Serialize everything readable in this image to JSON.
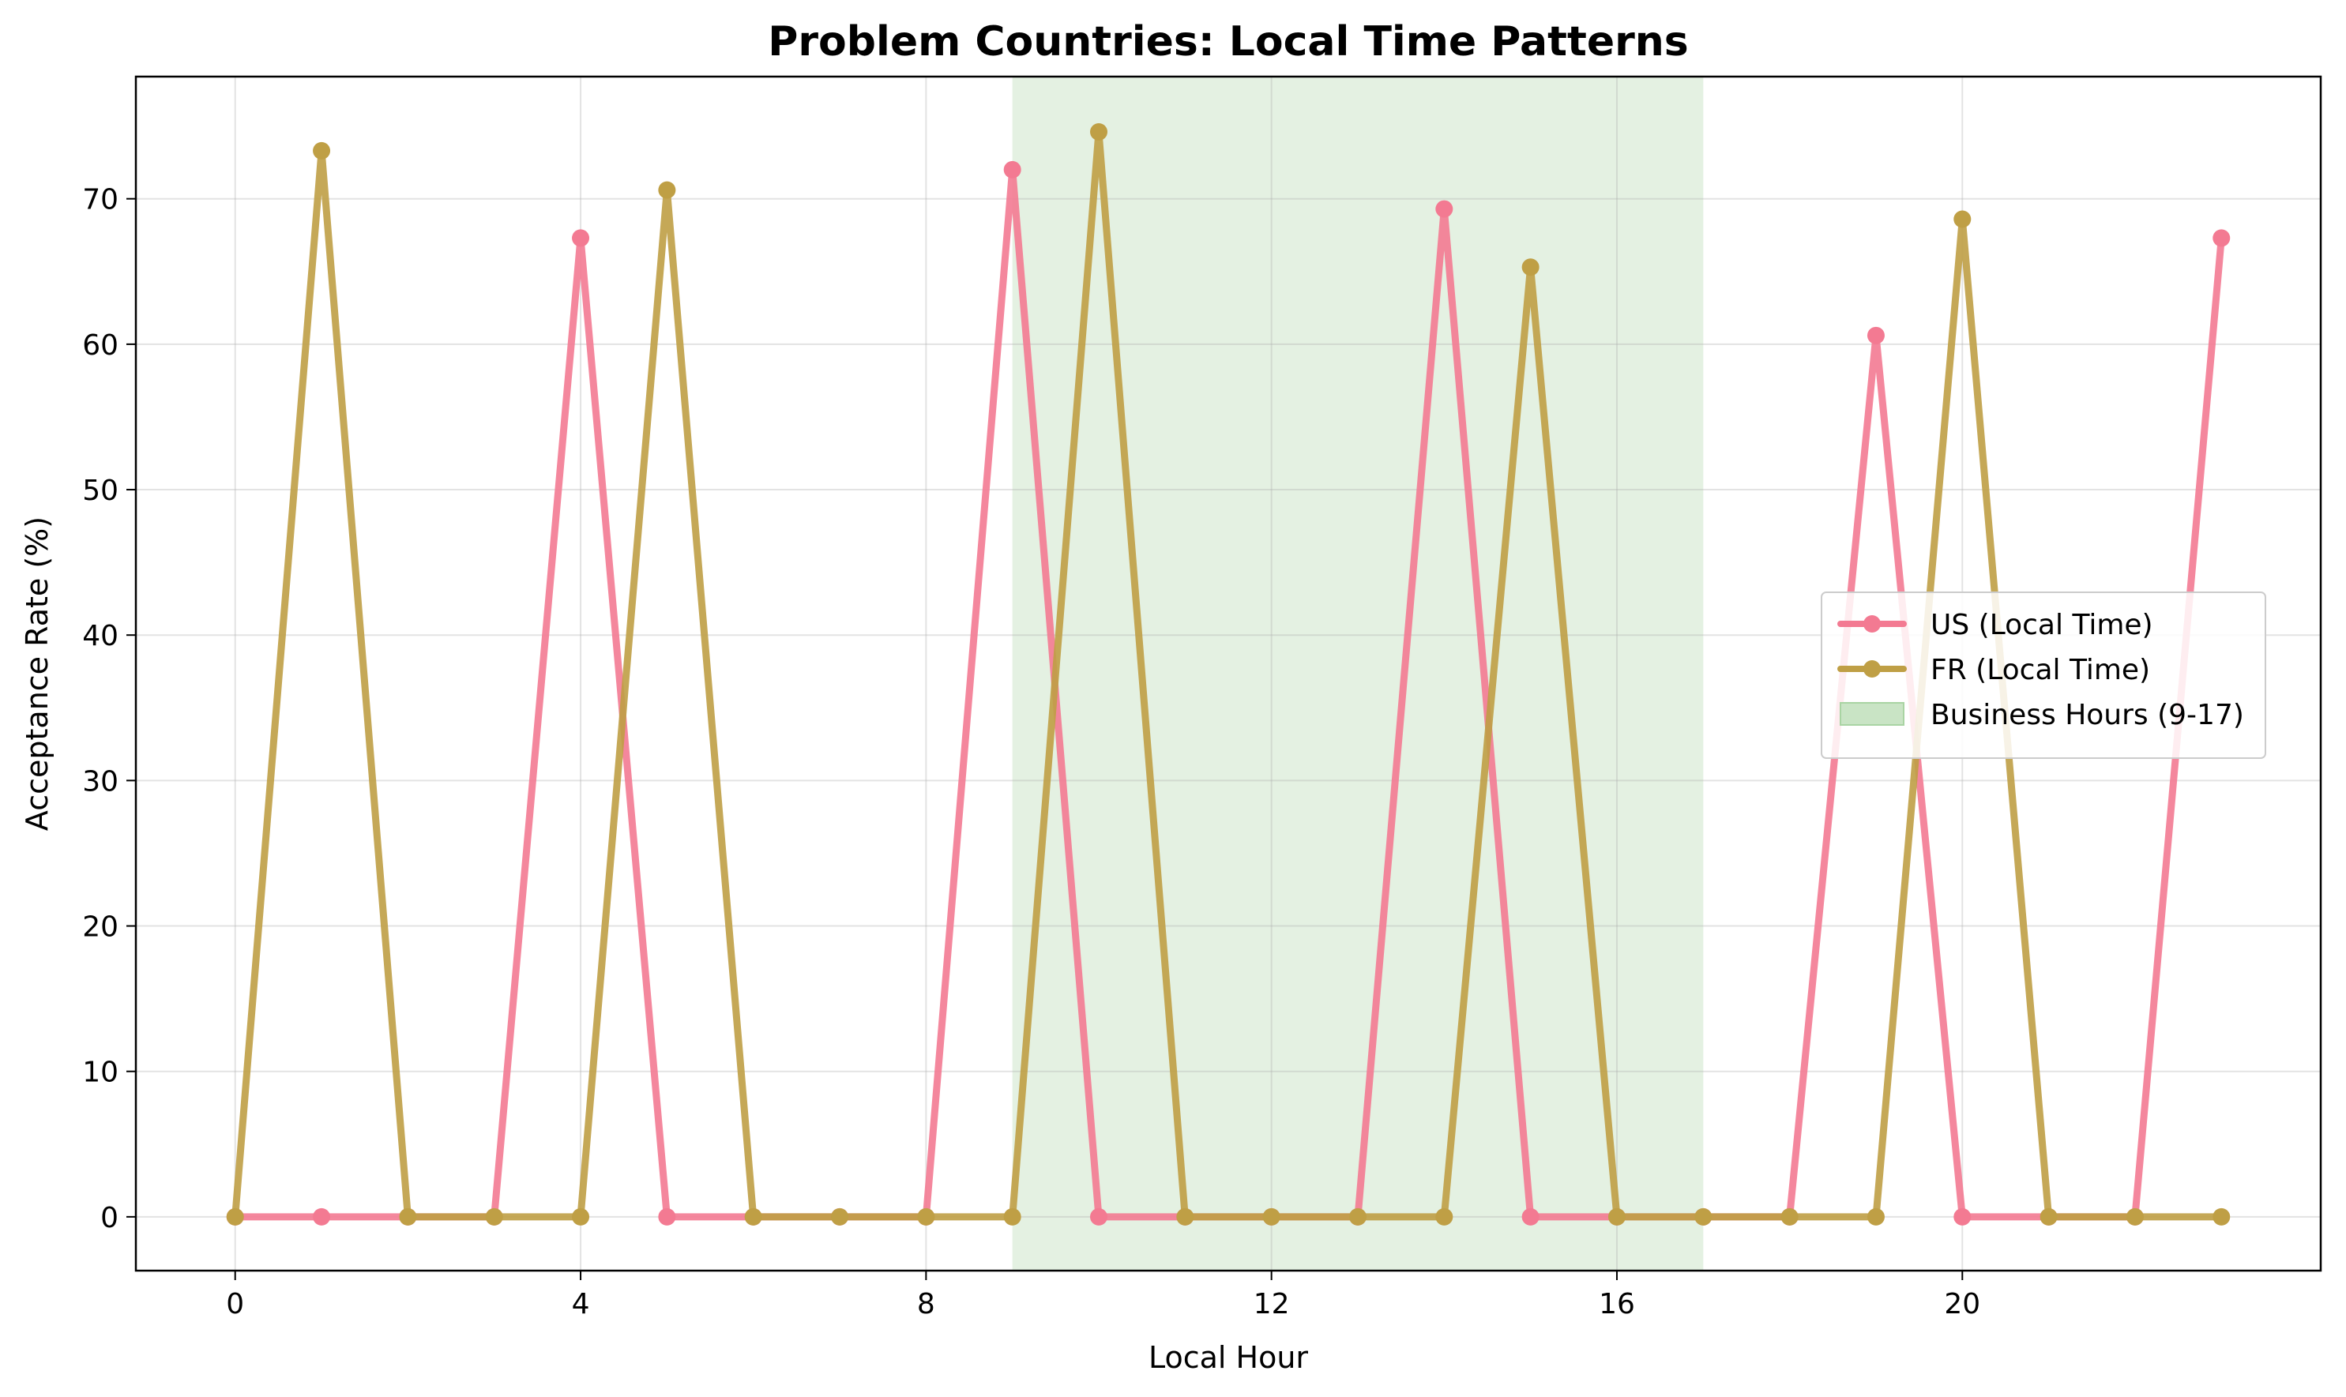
{
  "chart_data": {
    "type": "line",
    "title": "Problem Countries: Local Time Patterns",
    "xlabel": "Local Hour",
    "ylabel": "Acceptance Rate (%)",
    "xlim": [
      -1.15,
      24.15
    ],
    "ylim": [
      -3.7,
      78.4
    ],
    "xticks": [
      0,
      4,
      8,
      12,
      16,
      20
    ],
    "yticks": [
      0,
      10,
      20,
      30,
      40,
      50,
      60,
      70
    ],
    "grid": true,
    "legend_position": "center-right",
    "x": [
      0,
      1,
      2,
      3,
      4,
      5,
      6,
      7,
      8,
      9,
      10,
      11,
      12,
      13,
      14,
      15,
      16,
      17,
      18,
      19,
      20,
      21,
      22,
      23
    ],
    "series": [
      {
        "name": "US (Local Time)",
        "color": "#f37a92",
        "values": [
          0,
          0,
          0,
          0,
          67.3,
          0,
          0,
          0,
          0,
          72.0,
          0,
          0,
          0,
          0,
          69.3,
          0,
          0,
          0,
          0,
          60.6,
          0,
          0,
          0,
          67.3
        ]
      },
      {
        "name": "FR (Local Time)",
        "color": "#bf9f45",
        "values": [
          0,
          73.3,
          0,
          0,
          0,
          70.6,
          0,
          0,
          0,
          0,
          74.6,
          0,
          0,
          0,
          0,
          65.3,
          0,
          0,
          0,
          0,
          68.6,
          0,
          0,
          0
        ]
      }
    ],
    "shaded_region": {
      "label": "Business Hours (9-17)",
      "x_start": 9,
      "x_end": 17,
      "color": "#c9e4c5"
    }
  }
}
